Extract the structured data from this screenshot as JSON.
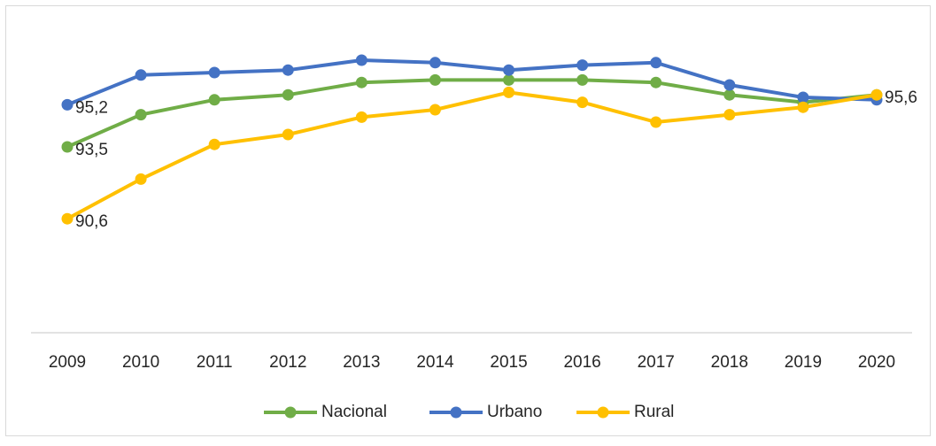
{
  "chart_data": {
    "type": "line",
    "categories": [
      "2009",
      "2010",
      "2011",
      "2012",
      "2013",
      "2014",
      "2015",
      "2016",
      "2017",
      "2018",
      "2019",
      "2020"
    ],
    "ylim": [
      86,
      98
    ],
    "legend": "bottom",
    "series": [
      {
        "name": "Nacional",
        "color": "#70ad47",
        "values": [
          93.5,
          94.8,
          95.4,
          95.6,
          96.1,
          96.2,
          96.2,
          96.2,
          96.1,
          95.6,
          95.3,
          95.6
        ],
        "value_labels": [
          "93,5",
          null,
          null,
          null,
          null,
          null,
          null,
          null,
          null,
          null,
          null,
          null
        ]
      },
      {
        "name": "Urbano",
        "color": "#4472c4",
        "values": [
          95.2,
          96.4,
          96.5,
          96.6,
          97.0,
          96.9,
          96.6,
          96.8,
          96.9,
          96.0,
          95.5,
          95.4
        ],
        "value_labels": [
          "95,2",
          null,
          null,
          null,
          null,
          null,
          null,
          null,
          null,
          null,
          null,
          null
        ]
      },
      {
        "name": "Rural",
        "color": "#ffc000",
        "values": [
          90.6,
          92.2,
          93.6,
          94.0,
          94.7,
          95.0,
          95.7,
          95.3,
          94.5,
          94.8,
          95.1,
          95.6
        ],
        "value_labels": [
          "90,6",
          null,
          null,
          null,
          null,
          null,
          null,
          null,
          null,
          null,
          null,
          "95,6"
        ]
      }
    ]
  }
}
